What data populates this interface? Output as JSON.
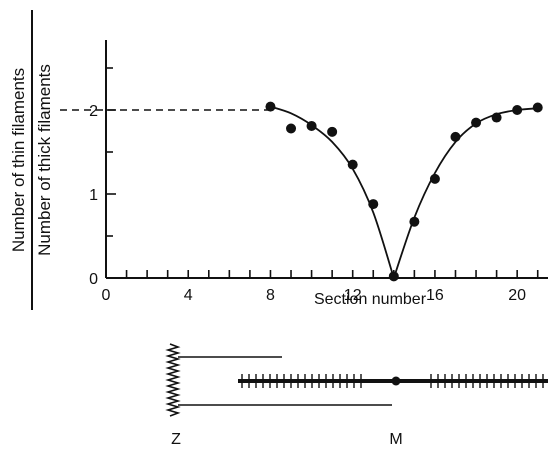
{
  "chart_data": {
    "type": "scatter",
    "title": "",
    "xlabel": "Section number",
    "ylabel_numerator": "Number of thin filaments",
    "ylabel_denominator": "Number of thick filaments",
    "xlim": [
      0,
      21.5
    ],
    "ylim": [
      0,
      3
    ],
    "x_ticks": [
      0,
      4,
      8,
      12,
      16,
      20
    ],
    "y_ticks": [
      0,
      1,
      2
    ],
    "reference_line": {
      "y": 2,
      "style": "dashed",
      "x_end": 8
    },
    "points": [
      {
        "x": 8,
        "y": 2.04
      },
      {
        "x": 9,
        "y": 1.78
      },
      {
        "x": 10,
        "y": 1.81
      },
      {
        "x": 11,
        "y": 1.74
      },
      {
        "x": 12,
        "y": 1.35
      },
      {
        "x": 13,
        "y": 0.88
      },
      {
        "x": 14,
        "y": 0.02
      },
      {
        "x": 15,
        "y": 0.67
      },
      {
        "x": 16,
        "y": 1.18
      },
      {
        "x": 17,
        "y": 1.68
      },
      {
        "x": 18,
        "y": 1.85
      },
      {
        "x": 19,
        "y": 1.91
      },
      {
        "x": 20,
        "y": 2.0
      },
      {
        "x": 21,
        "y": 2.03
      }
    ],
    "fit_curve": [
      {
        "x": 8,
        "y": 2.04
      },
      {
        "x": 9,
        "y": 1.96
      },
      {
        "x": 10,
        "y": 1.82
      },
      {
        "x": 11,
        "y": 1.62
      },
      {
        "x": 12,
        "y": 1.3
      },
      {
        "x": 13,
        "y": 0.78
      },
      {
        "x": 14,
        "y": 0.0
      },
      {
        "x": 15,
        "y": 0.72
      },
      {
        "x": 16,
        "y": 1.25
      },
      {
        "x": 17,
        "y": 1.62
      },
      {
        "x": 18,
        "y": 1.84
      },
      {
        "x": 19,
        "y": 1.95
      },
      {
        "x": 20,
        "y": 2.0
      },
      {
        "x": 21,
        "y": 2.02
      }
    ]
  },
  "diagram": {
    "z_label": "Z",
    "m_label": "M"
  }
}
